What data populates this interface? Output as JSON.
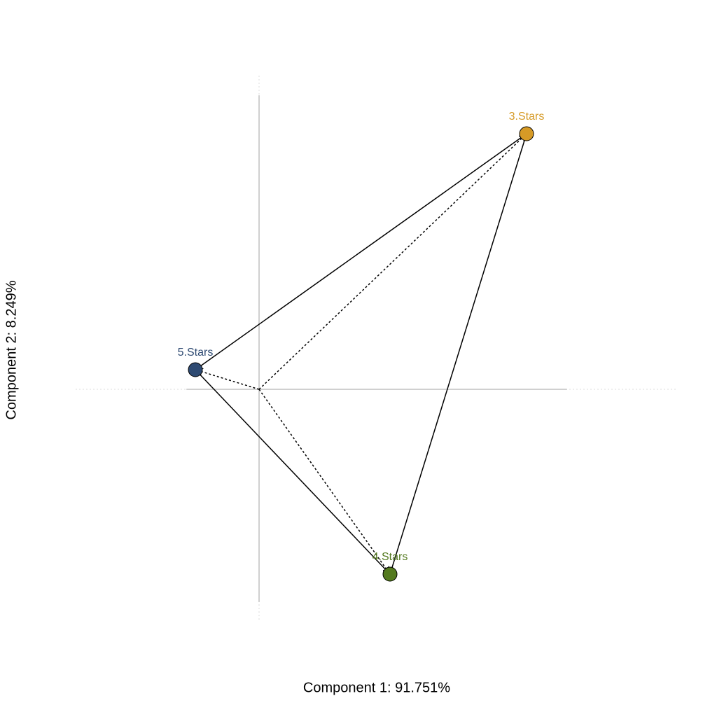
{
  "chart_data": {
    "type": "scatter",
    "xlabel": "Component 1: 91.751%",
    "ylabel": "Component 2: 8.249%",
    "labels": [
      "3.Stars",
      "5.Stars",
      "4.Stars"
    ],
    "x": [
      3.82,
      -0.91,
      1.87
    ],
    "values": [
      3.65,
      0.28,
      -2.64
    ],
    "colors": [
      "#d69a26",
      "#2e4a72",
      "#547a1f"
    ],
    "xlim": [
      -2.62,
      5.98
    ],
    "ylim": [
      -3.32,
      4.48
    ]
  }
}
